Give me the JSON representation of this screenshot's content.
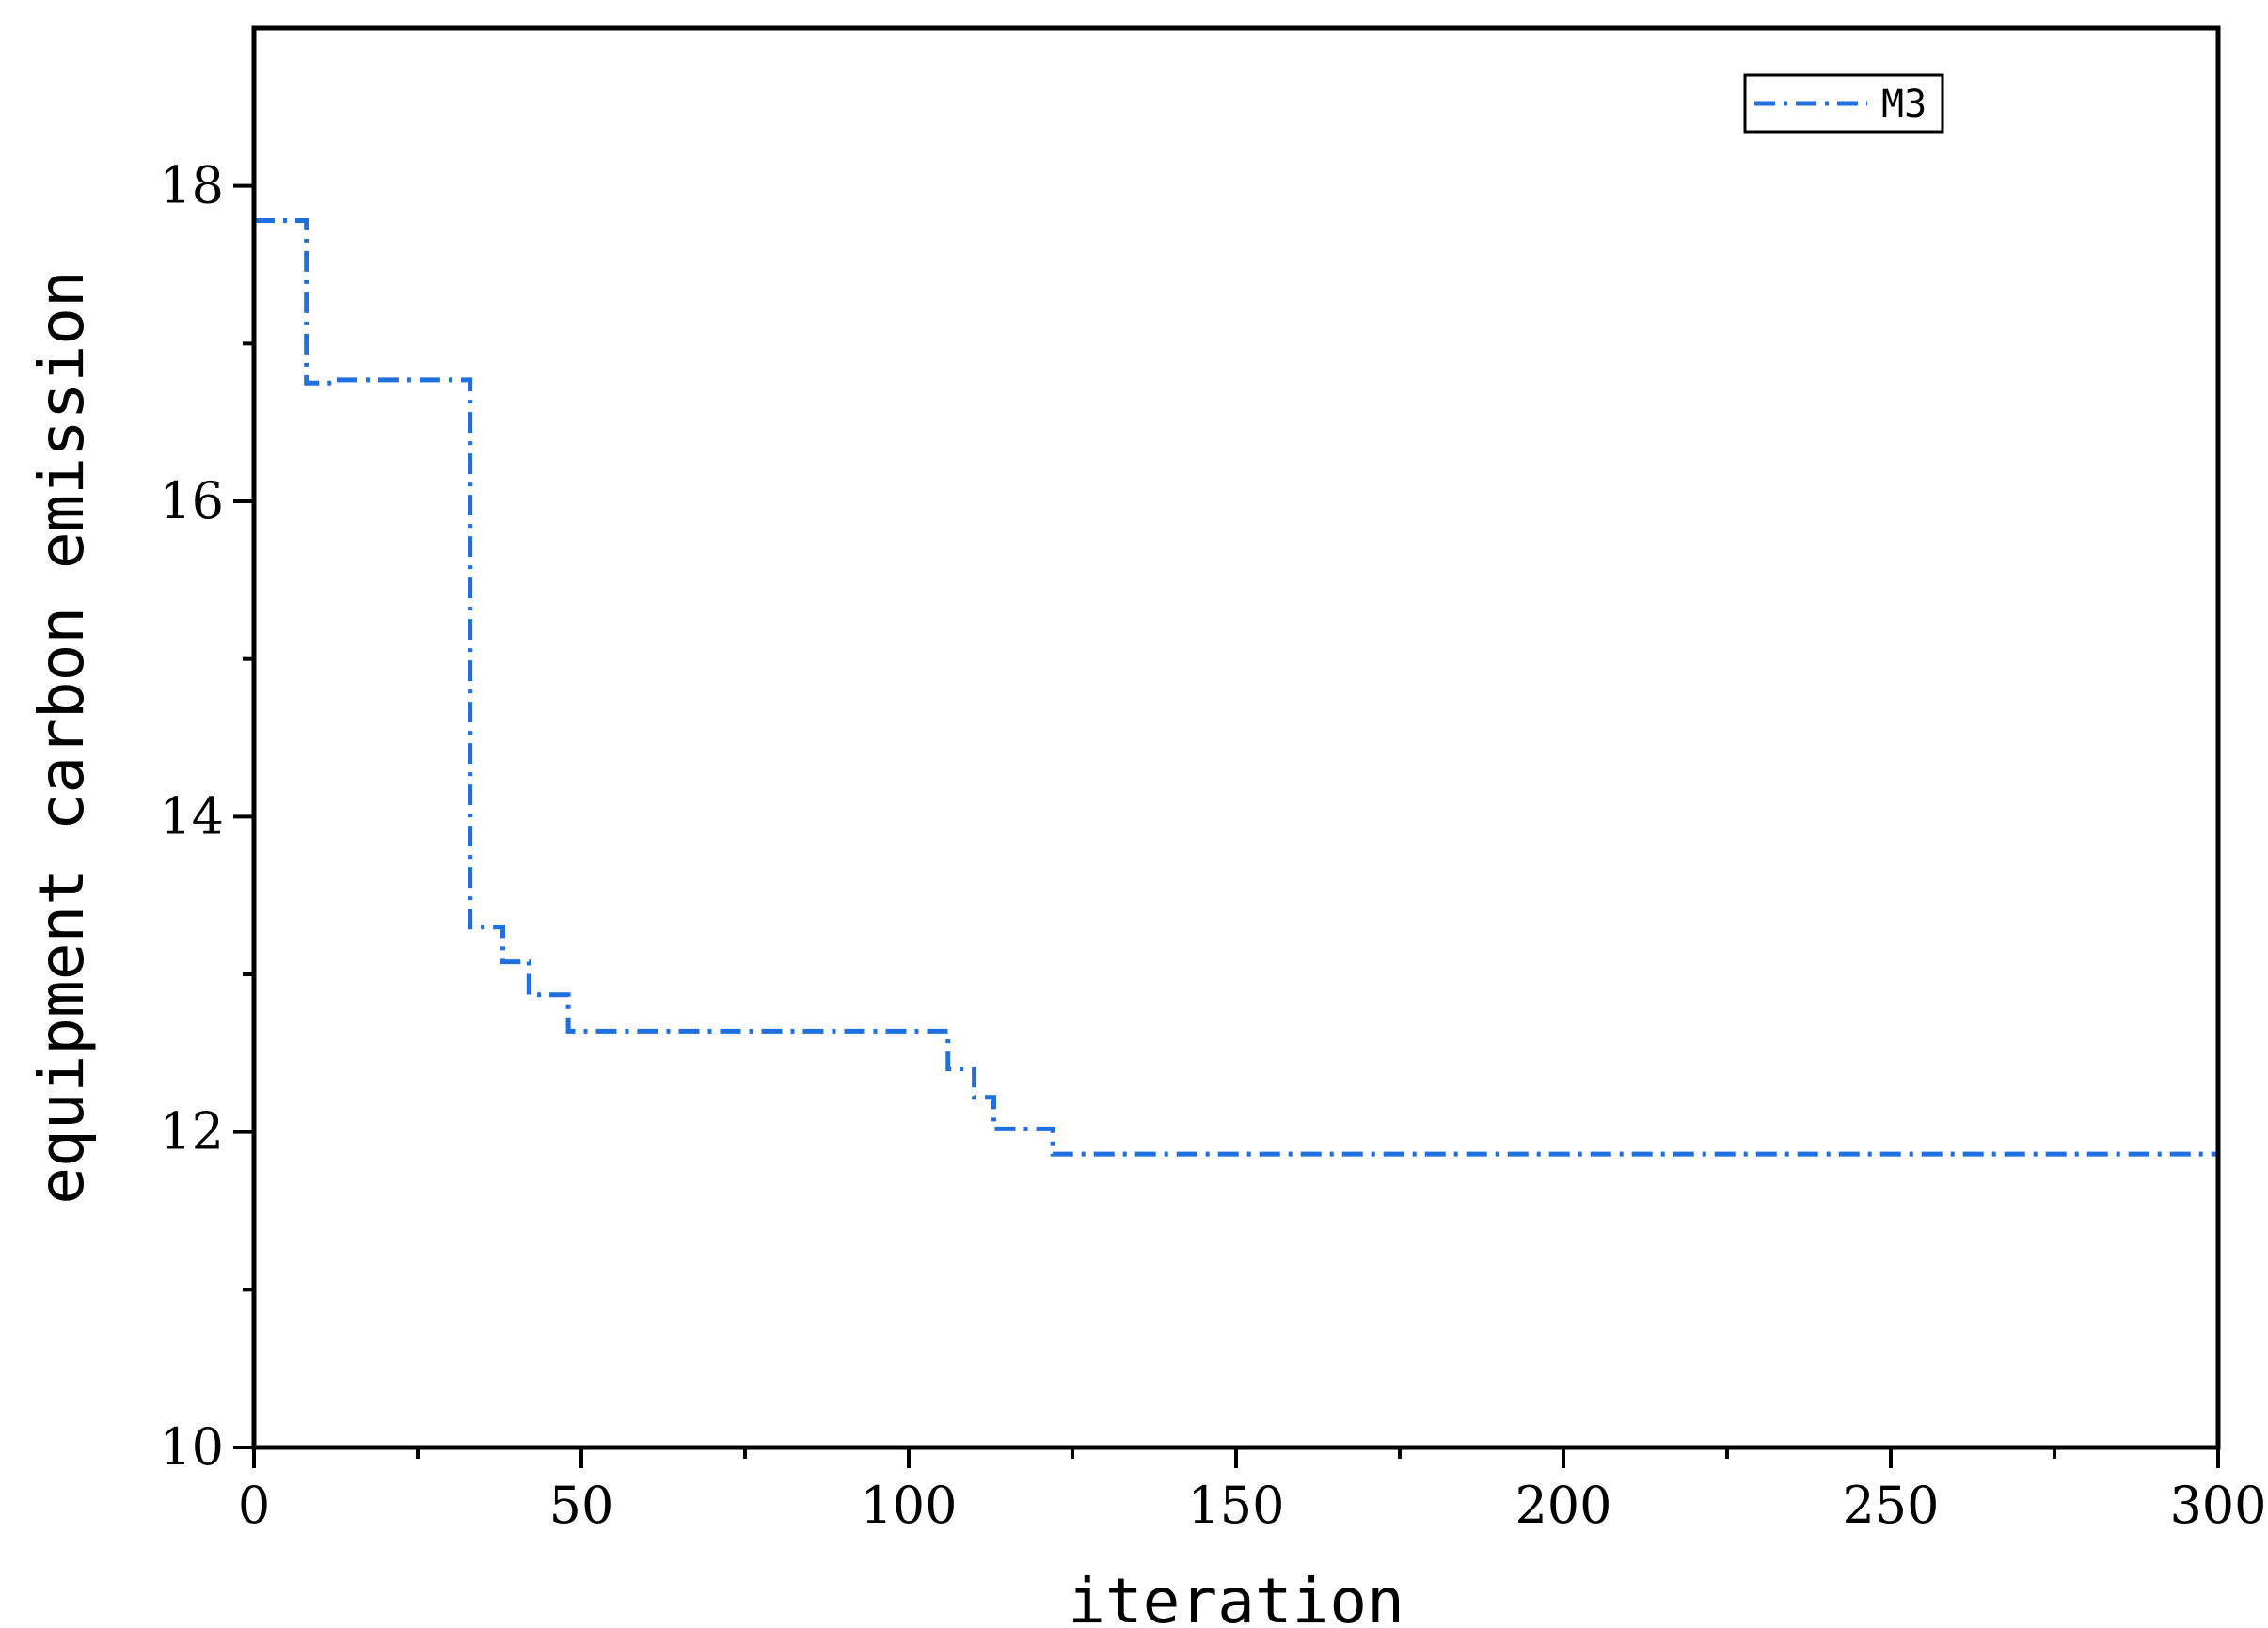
{
  "chart_data": {
    "type": "line",
    "xlabel": "iteration",
    "ylabel": "equipment carbon emission",
    "xlim": [
      0,
      300
    ],
    "ylim": [
      10,
      19
    ],
    "x_ticks": [
      0,
      50,
      100,
      150,
      200,
      250,
      300
    ],
    "y_ticks": [
      10,
      12,
      14,
      16,
      18
    ],
    "grid": false,
    "legend": "top-right",
    "series": [
      {
        "name": "M3",
        "color": "#1f6fe0",
        "line_style": "dash-dot",
        "step": true,
        "x": [
          0,
          8,
          13,
          33,
          38,
          42,
          48,
          106,
          110,
          113,
          122,
          300
        ],
        "y": [
          17.78,
          16.75,
          16.77,
          13.3,
          13.08,
          12.87,
          12.64,
          12.4,
          12.22,
          12.02,
          11.86,
          11.62
        ]
      }
    ]
  }
}
